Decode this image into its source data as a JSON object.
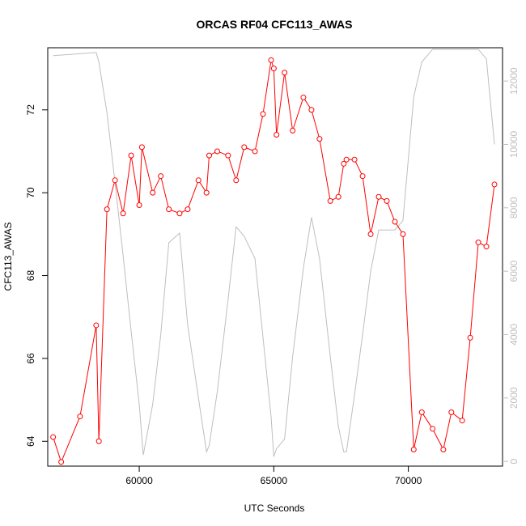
{
  "chart_data": {
    "type": "line",
    "title": "ORCAS RF04 CFC113_AWAS",
    "xlabel": "UTC Seconds",
    "ylabel": "CFC113_AWAS",
    "xlim": [
      56600,
      73500
    ],
    "ylim": [
      63.4,
      73.5
    ],
    "y2lim": [
      -150,
      13050
    ],
    "x_ticks": [
      60000,
      65000,
      70000
    ],
    "y_ticks": [
      64,
      66,
      68,
      70,
      72
    ],
    "y2_ticks": [
      0,
      2000,
      4000,
      6000,
      8000,
      10000,
      12000
    ],
    "grid": false,
    "legend": "none",
    "series": [
      {
        "axis": "left",
        "color": "#ff0000",
        "marker": "open-circle",
        "x": [
          56800,
          57100,
          57800,
          58400,
          58500,
          58800,
          59100,
          59400,
          59700,
          60000,
          60100,
          60500,
          60800,
          61100,
          61500,
          61800,
          62200,
          62500,
          62600,
          62900,
          63300,
          63600,
          63900,
          64300,
          64600,
          64900,
          65000,
          65100,
          65400,
          65700,
          66100,
          66400,
          66700,
          67100,
          67400,
          67600,
          67700,
          68000,
          68300,
          68600,
          68900,
          69200,
          69500,
          69800,
          70200,
          70500,
          70900,
          71300,
          71600,
          72000,
          72300,
          72600,
          72900,
          73200
        ],
        "values": [
          64.1,
          63.5,
          64.6,
          66.8,
          64.0,
          69.6,
          70.3,
          69.5,
          70.9,
          69.7,
          71.1,
          70.0,
          70.4,
          69.6,
          69.5,
          69.6,
          70.3,
          70.0,
          70.9,
          71.0,
          70.9,
          70.3,
          71.1,
          71.0,
          71.9,
          73.2,
          73.0,
          71.4,
          72.9,
          71.5,
          72.3,
          72.0,
          71.3,
          69.8,
          69.9,
          70.7,
          70.8,
          70.8,
          70.4,
          69.0,
          69.9,
          69.8,
          69.3,
          69.0,
          63.8,
          64.7,
          64.3,
          63.8,
          64.7,
          64.5,
          66.5,
          68.8,
          68.7,
          70.2
        ]
      },
      {
        "axis": "right",
        "color": "#bebebe",
        "marker": "none",
        "x": [
          56800,
          58400,
          58500,
          58800,
          59100,
          59400,
          59700,
          60000,
          60150,
          60500,
          60800,
          61100,
          61500,
          61800,
          62200,
          62500,
          62600,
          62900,
          63300,
          63600,
          63900,
          64300,
          64600,
          64900,
          65000,
          65100,
          65400,
          65700,
          66100,
          66400,
          66700,
          67100,
          67400,
          67600,
          67700,
          68000,
          68300,
          68600,
          68900,
          69200,
          69500,
          69800,
          70200,
          70500,
          70900,
          71300,
          71600,
          72000,
          72300,
          72600,
          72900,
          73200
        ],
        "values": [
          12800,
          12900,
          12600,
          11000,
          8800,
          6500,
          4100,
          1800,
          200,
          1800,
          4000,
          6900,
          7200,
          4300,
          2000,
          300,
          500,
          2200,
          5100,
          7400,
          7100,
          6400,
          3900,
          1400,
          150,
          400,
          700,
          3300,
          6100,
          7700,
          6400,
          3300,
          1100,
          300,
          300,
          2100,
          4000,
          6000,
          7300,
          7300,
          7300,
          7600,
          11500,
          12600,
          13000,
          13000,
          13000,
          13000,
          13000,
          13000,
          12700,
          10000
        ]
      }
    ]
  }
}
